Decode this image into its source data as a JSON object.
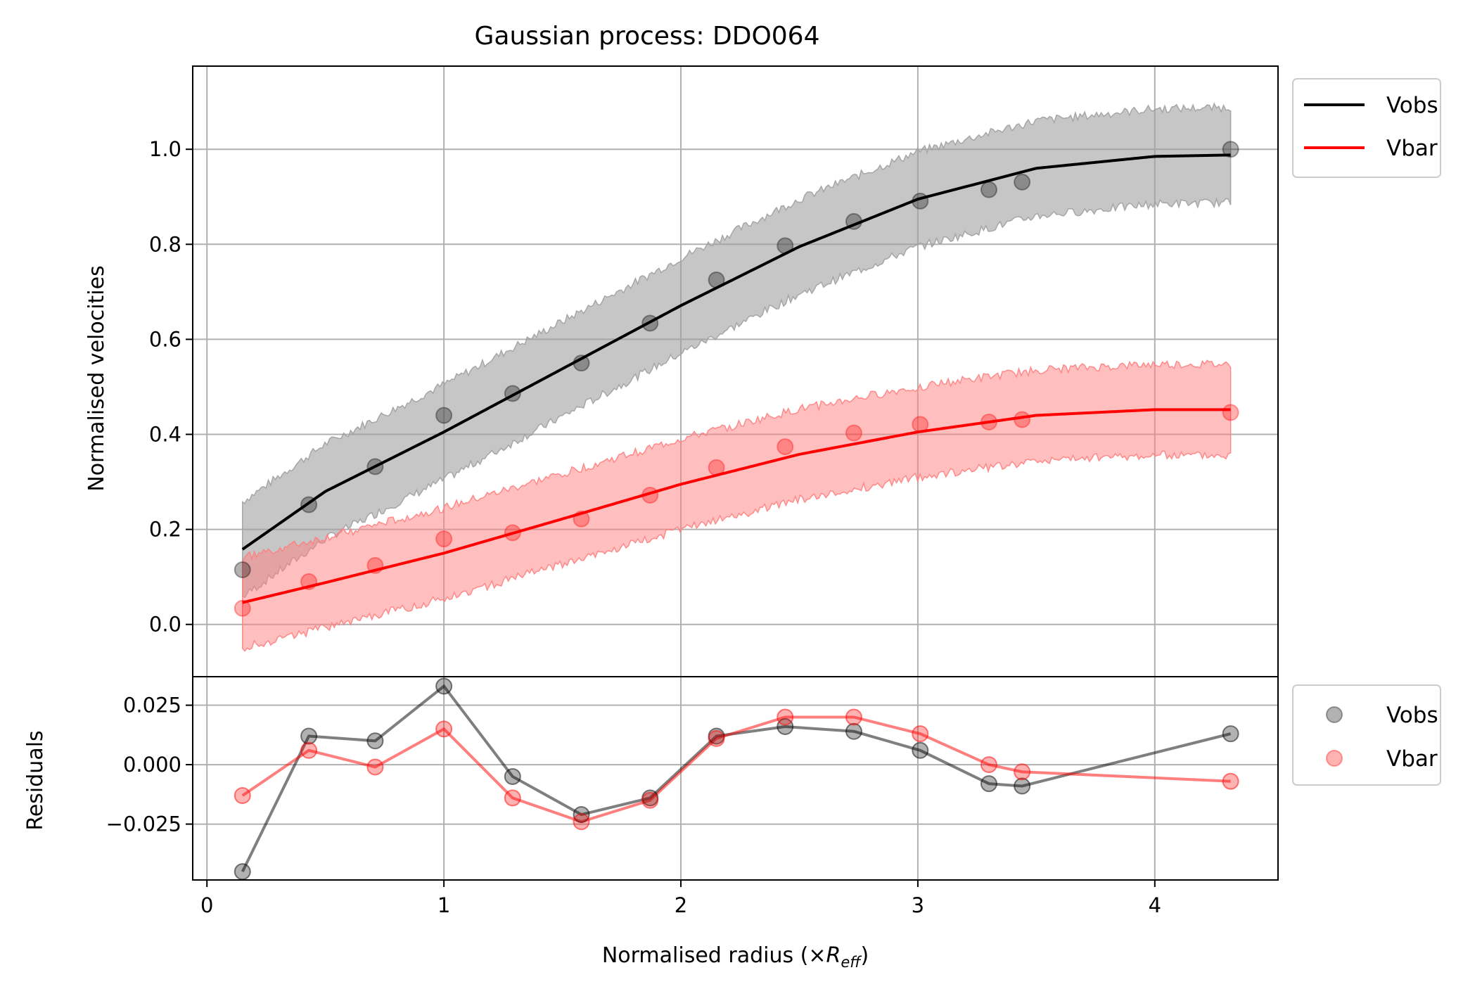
{
  "chart_data": {
    "title": "Gaussian process: DDO064",
    "xlabel_prefix": "Normalised radius (×",
    "xlabel_symbol": "R",
    "xlabel_sub": "eff",
    "xlabel_suffix": ")",
    "xlim": [
      -0.06,
      4.52
    ],
    "colors": {
      "Vobs": "#000000",
      "Vbar": "#ff0000"
    },
    "x_ticks": [
      0,
      1,
      2,
      3,
      4
    ],
    "x_tick_labels": [
      "0",
      "1",
      "2",
      "3",
      "4"
    ],
    "radius": [
      0.15,
      0.43,
      0.71,
      1.0,
      1.29,
      1.58,
      1.87,
      2.15,
      2.44,
      2.73,
      3.01,
      3.3,
      3.44,
      4.32
    ],
    "panels": [
      {
        "type": "scatter+line",
        "ylabel": "Normalised velocities",
        "ylim": [
          -0.11,
          1.175
        ],
        "y_ticks": [
          0.0,
          0.2,
          0.4,
          0.6,
          0.8,
          1.0
        ],
        "y_tick_labels": [
          "0.0",
          "0.2",
          "0.4",
          "0.6",
          "0.8",
          "1.0"
        ],
        "grid": true,
        "legend": "outside-right-top",
        "legend_entries": [
          "Vobs",
          "Vbar"
        ],
        "series": [
          {
            "name": "Vobs",
            "points": [
              0.115,
              0.252,
              0.332,
              0.44,
              0.486,
              0.55,
              0.634,
              0.725,
              0.797,
              0.848,
              0.891,
              0.915,
              0.931,
              1.0
            ],
            "fit_x": [
              0.15,
              0.5,
              1.0,
              1.5,
              2.0,
              2.5,
              3.0,
              3.5,
              4.0,
              4.32
            ],
            "fit_y": [
              0.158,
              0.28,
              0.405,
              0.538,
              0.671,
              0.795,
              0.895,
              0.96,
              0.985,
              0.988
            ],
            "band_halfwidth": 0.1
          },
          {
            "name": "Vbar",
            "points": [
              0.034,
              0.09,
              0.124,
              0.18,
              0.193,
              0.222,
              0.272,
              0.33,
              0.374,
              0.403,
              0.421,
              0.426,
              0.431,
              0.446
            ],
            "fit_x": [
              0.15,
              0.5,
              1.0,
              1.5,
              2.0,
              2.5,
              3.0,
              3.5,
              4.0,
              4.32
            ],
            "fit_y": [
              0.046,
              0.088,
              0.15,
              0.222,
              0.295,
              0.358,
              0.405,
              0.44,
              0.452,
              0.452
            ],
            "band_halfwidth": 0.095
          }
        ]
      },
      {
        "type": "scatter+line",
        "ylabel": "Residuals",
        "ylim": [
          -0.0485,
          0.037
        ],
        "y_ticks": [
          0.025,
          0.0,
          -0.025
        ],
        "y_tick_labels": [
          "0.025",
          "0.000",
          "−0.025"
        ],
        "grid": true,
        "legend": "outside-right-top",
        "legend_entries": [
          "Vobs",
          "Vbar"
        ],
        "series": [
          {
            "name": "Vobs",
            "points": [
              -0.045,
              0.012,
              0.01,
              0.033,
              -0.005,
              -0.021,
              -0.014,
              0.012,
              0.016,
              0.014,
              0.006,
              -0.008,
              -0.009,
              0.013
            ]
          },
          {
            "name": "Vbar",
            "points": [
              -0.013,
              0.006,
              -0.001,
              0.015,
              -0.014,
              -0.024,
              -0.015,
              0.011,
              0.02,
              0.02,
              0.013,
              0.0,
              -0.003,
              -0.007
            ]
          }
        ]
      }
    ]
  }
}
